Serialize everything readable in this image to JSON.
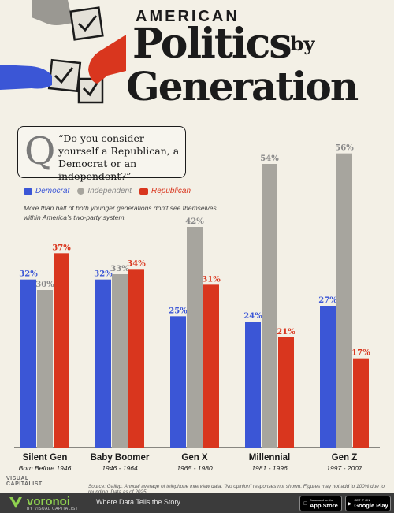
{
  "header": {
    "kicker": "AMERICAN",
    "title_line1": "Politics",
    "title_by": "by",
    "title_line2": "Generation"
  },
  "question": {
    "letter": "Q",
    "text": "“Do you consider yourself a Republican, a Democrat or an independent?”"
  },
  "legend": {
    "democrat": "Democrat",
    "independent": "Independent",
    "republican": "Republican"
  },
  "note": "More than half of both younger generations don’t see themselves within America’s two-party system.",
  "colors": {
    "democrat": "#3b56d6",
    "independent": "#a7a59e",
    "republican": "#d9361e"
  },
  "chart_data": {
    "type": "bar",
    "categories": [
      "Silent Gen",
      "Baby Boomer",
      "Gen X",
      "Millennial",
      "Gen Z"
    ],
    "category_subtitles": [
      "Born Before 1946",
      "1946 - 1964",
      "1965 - 1980",
      "1981 - 1996",
      "1997 - 2007"
    ],
    "series": [
      {
        "name": "Democrat",
        "values": [
          32,
          32,
          25,
          24,
          27
        ]
      },
      {
        "name": "Independent",
        "values": [
          30,
          33,
          42,
          54,
          56
        ]
      },
      {
        "name": "Republican",
        "values": [
          37,
          34,
          31,
          21,
          17
        ]
      }
    ],
    "ylim": [
      0,
      60
    ],
    "value_suffix": "%",
    "grid": false,
    "legend_position": "top-left"
  },
  "source": "Source: Gallup. Annual average of telephone interview data. \"No opinion\" responses not shown. Figures may not add to 100% due to rounding. Data as of 2025",
  "logo": {
    "line1": "VISUAL",
    "line2": "CAPITALIST"
  },
  "footer": {
    "brand": "voronoi",
    "brand_sub": "BY VISUAL CAPITALIST",
    "tagline": "Where Data Tells the Story",
    "app_store_small": "Download on the",
    "app_store": "App Store",
    "google_play_small": "GET IT ON",
    "google_play": "Google Play"
  }
}
